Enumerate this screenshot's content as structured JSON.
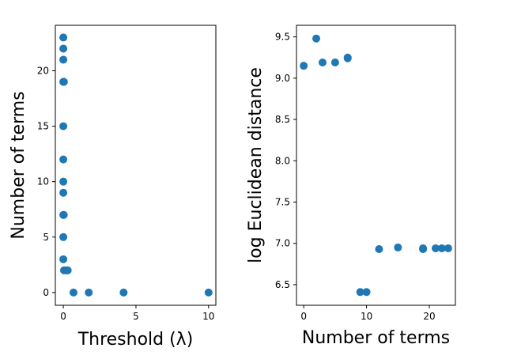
{
  "chart_data": [
    {
      "type": "scatter",
      "xlabel": "Threshold (λ)",
      "ylabel": "Number of terms",
      "xlim": [
        -0.55,
        10.5
      ],
      "ylim": [
        -1.15,
        24.1
      ],
      "xticks": [
        0,
        5,
        10
      ],
      "yticks": [
        0,
        5,
        10,
        15,
        20
      ],
      "grid": false,
      "marker_color": "#1f77b4",
      "points": [
        {
          "x": 0.0,
          "y": 23
        },
        {
          "x": 0.0,
          "y": 22
        },
        {
          "x": 0.0,
          "y": 21
        },
        {
          "x": 0.0,
          "y": 19
        },
        {
          "x": 0.02,
          "y": 19
        },
        {
          "x": 0.04,
          "y": 19
        },
        {
          "x": 0.0,
          "y": 15
        },
        {
          "x": 0.0,
          "y": 12
        },
        {
          "x": 0.0,
          "y": 10
        },
        {
          "x": 0.0,
          "y": 9
        },
        {
          "x": 0.0,
          "y": 7
        },
        {
          "x": 0.03,
          "y": 7
        },
        {
          "x": 0.0,
          "y": 5
        },
        {
          "x": 0.0,
          "y": 3
        },
        {
          "x": 0.05,
          "y": 2
        },
        {
          "x": 0.2,
          "y": 2
        },
        {
          "x": 0.3,
          "y": 2
        },
        {
          "x": 0.7,
          "y": 0
        },
        {
          "x": 1.75,
          "y": 0
        },
        {
          "x": 4.15,
          "y": 0
        },
        {
          "x": 10.0,
          "y": 0
        }
      ]
    },
    {
      "type": "scatter",
      "xlabel": "Number of terms",
      "ylabel": "log Euclidean distance",
      "xlim": [
        -1.15,
        24.15
      ],
      "ylim": [
        6.25,
        9.64
      ],
      "xticks": [
        0,
        10,
        20
      ],
      "yticks": [
        6.5,
        7.0,
        7.5,
        8.0,
        8.5,
        9.0,
        9.5
      ],
      "ytick_labels": [
        "6.5",
        "7.0",
        "7.5",
        "8.0",
        "8.5",
        "9.0",
        "9.5"
      ],
      "grid": false,
      "marker_color": "#1f77b4",
      "points": [
        {
          "x": 0,
          "y": 9.15
        },
        {
          "x": 2,
          "y": 9.48
        },
        {
          "x": 3,
          "y": 9.19
        },
        {
          "x": 5,
          "y": 9.19
        },
        {
          "x": 7,
          "y": 9.25
        },
        {
          "x": 7,
          "y": 9.24
        },
        {
          "x": 9,
          "y": 6.41
        },
        {
          "x": 10,
          "y": 6.41
        },
        {
          "x": 12,
          "y": 6.93
        },
        {
          "x": 15,
          "y": 6.95
        },
        {
          "x": 19,
          "y": 6.94
        },
        {
          "x": 19,
          "y": 6.93
        },
        {
          "x": 21,
          "y": 6.94
        },
        {
          "x": 22,
          "y": 6.94
        },
        {
          "x": 23,
          "y": 6.94
        }
      ]
    }
  ]
}
